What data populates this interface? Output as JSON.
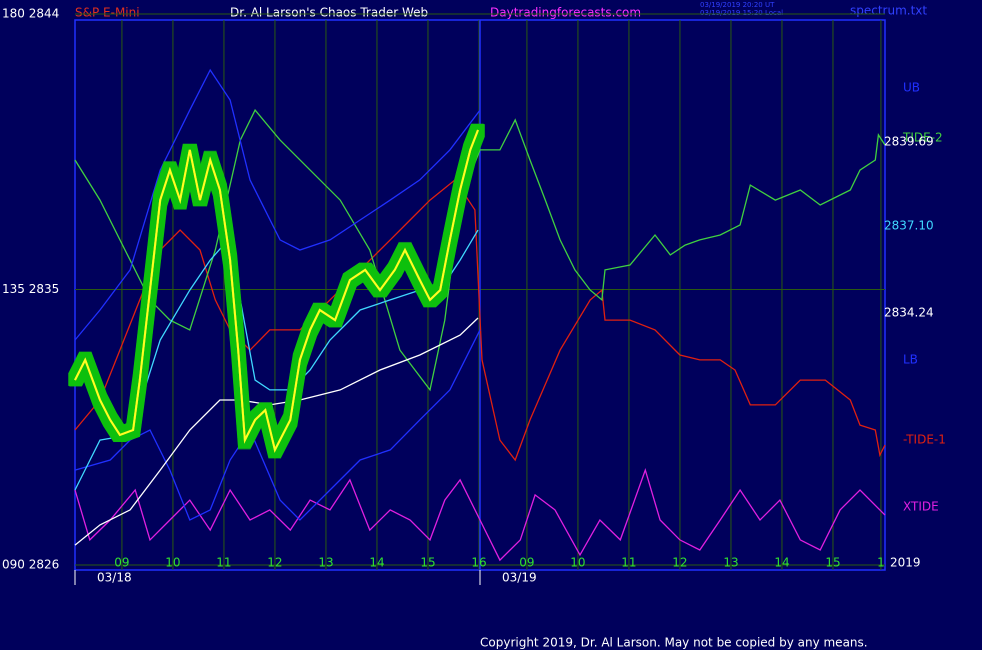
{
  "chart_data": {
    "type": "line",
    "title": "Dr. Al Larson's Chaos Trader Web",
    "instrument": "S&P E-Mini",
    "site": "Daytradingforecasts.com",
    "timestamps": [
      "03/19/2019 20:20 UT",
      "03/19/2019 15:20 Local"
    ],
    "file": "spectrum.txt",
    "footer": "Copyright 2019, Dr. Al Larson. May not be copied by any means.",
    "year": "2019",
    "grid": true,
    "ylim": [
      2826,
      2844
    ],
    "yticks": [
      {
        "value": 2826,
        "label": "090  2826"
      },
      {
        "value": 2835,
        "label": "135  2835"
      },
      {
        "value": 2844,
        "label": "180  2844"
      }
    ],
    "xlim": [
      0,
      15.88
    ],
    "xticks": [
      {
        "value": 0.92,
        "label": "09"
      },
      {
        "value": 1.92,
        "label": "10"
      },
      {
        "value": 2.92,
        "label": "11"
      },
      {
        "value": 3.92,
        "label": "12"
      },
      {
        "value": 4.92,
        "label": "13"
      },
      {
        "value": 5.92,
        "label": "14"
      },
      {
        "value": 6.92,
        "label": "15"
      },
      {
        "value": 7.92,
        "label": "16"
      },
      {
        "value": 8.86,
        "label": "09"
      },
      {
        "value": 9.86,
        "label": "10"
      },
      {
        "value": 10.86,
        "label": "11"
      },
      {
        "value": 11.86,
        "label": "12"
      },
      {
        "value": 12.86,
        "label": "13"
      },
      {
        "value": 13.86,
        "label": "14"
      },
      {
        "value": 14.86,
        "label": "15"
      },
      {
        "value": 15.8,
        "label": "1"
      }
    ],
    "date_ticks": [
      {
        "value": 0,
        "label": "03/18"
      },
      {
        "value": 7.94,
        "label": "03/19"
      }
    ],
    "price_labels": [
      {
        "text": "2839.69",
        "color": "#ffffff"
      },
      {
        "text": "2837.10",
        "color": "#40d8ff"
      },
      {
        "text": "2834.24",
        "color": "#ffffff"
      }
    ],
    "series": [
      {
        "name": "XTIDE",
        "color": "#e020e0",
        "x": [
          0,
          0.29,
          0.69,
          1.18,
          1.47,
          1.86,
          2.25,
          2.65,
          3.04,
          3.43,
          3.82,
          4.22,
          4.61,
          5,
          5.39,
          5.78,
          6.18,
          6.57,
          6.96,
          7.25,
          7.55,
          7.94,
          8.33,
          8.73,
          9.02,
          9.41,
          9.9,
          10.29,
          10.69,
          11.18,
          11.47,
          11.86,
          12.25,
          12.65,
          13.04,
          13.43,
          13.82,
          14.22,
          14.61,
          15,
          15.39,
          15.88
        ],
        "values": [
          2828.45,
          2826.82,
          2827.47,
          2828.45,
          2826.82,
          2827.47,
          2828.12,
          2827.14,
          2828.45,
          2827.47,
          2827.8,
          2827.14,
          2828.12,
          2827.8,
          2828.78,
          2827.14,
          2827.8,
          2827.47,
          2826.82,
          2828.12,
          2828.78,
          2827.47,
          2826.16,
          2826.82,
          2828.29,
          2827.8,
          2826.33,
          2827.47,
          2826.82,
          2829.1,
          2827.47,
          2826.82,
          2826.49,
          2827.47,
          2828.45,
          2827.47,
          2828.12,
          2826.82,
          2826.49,
          2827.8,
          2828.45,
          2827.63
        ]
      },
      {
        "name": "-TIDE-1",
        "color": "#e02010",
        "x": [
          0,
          0.49,
          0.88,
          1.27,
          1.67,
          2.06,
          2.45,
          2.75,
          3.04,
          3.43,
          3.82,
          4.41,
          5,
          5.59,
          6.18,
          6.57,
          6.96,
          7.45,
          7.84,
          7.98,
          8.33,
          8.63,
          8.92,
          9.51,
          10.1,
          10.33,
          10.39,
          10.88,
          11.37,
          11.86,
          12.25,
          12.65,
          12.94,
          13.24,
          13.73,
          14.22,
          14.71,
          15.2,
          15.39,
          15.69,
          15.78,
          15.88
        ],
        "values": [
          2830.41,
          2831.39,
          2833.02,
          2834.66,
          2836.29,
          2836.94,
          2836.29,
          2834.66,
          2833.68,
          2833.02,
          2833.68,
          2833.68,
          2834.66,
          2835.64,
          2836.62,
          2837.27,
          2837.92,
          2838.58,
          2837.6,
          2832.7,
          2830.08,
          2829.43,
          2830.74,
          2833.02,
          2834.66,
          2834.98,
          2834.0,
          2834.0,
          2833.68,
          2832.86,
          2832.7,
          2832.7,
          2832.37,
          2831.23,
          2831.23,
          2832.04,
          2832.04,
          2831.39,
          2830.57,
          2830.41,
          2829.59,
          2829.92
        ]
      },
      {
        "name": "TIDE-2",
        "color": "#40d040",
        "x": [
          0,
          0.49,
          1.08,
          1.47,
          1.86,
          2.25,
          2.75,
          3.24,
          3.53,
          4.02,
          4.61,
          5.2,
          5.78,
          6.37,
          6.96,
          7.25,
          7.55,
          7.94,
          8.33,
          8.63,
          8.92,
          9.22,
          9.51,
          9.8,
          10.1,
          10.33,
          10.39,
          10.88,
          11.37,
          11.67,
          11.96,
          12.25,
          12.65,
          13.04,
          13.24,
          13.73,
          14.22,
          14.61,
          15.2,
          15.39,
          15.69,
          15.75,
          15.88
        ],
        "values": [
          2839.23,
          2837.92,
          2835.96,
          2834.66,
          2834.0,
          2833.68,
          2836.29,
          2839.88,
          2840.86,
          2839.88,
          2838.9,
          2837.92,
          2836.29,
          2833.02,
          2831.72,
          2834.0,
          2837.92,
          2839.56,
          2839.56,
          2840.54,
          2839.23,
          2837.92,
          2836.62,
          2835.64,
          2834.98,
          2834.66,
          2835.64,
          2835.8,
          2836.78,
          2836.13,
          2836.45,
          2836.62,
          2836.78,
          2837.11,
          2838.41,
          2837.92,
          2838.25,
          2837.76,
          2838.25,
          2838.9,
          2839.23,
          2840.05,
          2839.72
        ]
      },
      {
        "name": "UB",
        "color": "#2030ff",
        "x": [
          0,
          0.49,
          1.08,
          1.67,
          2.25,
          2.65,
          3.04,
          3.43,
          4.02,
          4.41,
          5,
          5.59,
          6.18,
          6.76,
          7.35,
          7.94
        ],
        "values": [
          2833.35,
          2834.33,
          2835.64,
          2838.9,
          2840.86,
          2842.17,
          2841.19,
          2838.58,
          2836.62,
          2836.29,
          2836.62,
          2837.27,
          2837.92,
          2838.58,
          2839.56,
          2840.86
        ]
      },
      {
        "name": "LB",
        "color": "#2030ff",
        "x": [
          0,
          0.69,
          1.08,
          1.47,
          1.86,
          2.25,
          2.65,
          3.04,
          3.43,
          4.02,
          4.41,
          5,
          5.59,
          6.18,
          6.76,
          7.35,
          7.94
        ],
        "values": [
          2829.1,
          2829.43,
          2830.08,
          2830.41,
          2829.1,
          2827.47,
          2827.8,
          2829.43,
          2830.41,
          2828.12,
          2827.47,
          2828.45,
          2829.43,
          2829.76,
          2830.74,
          2831.72,
          2833.68
        ]
      },
      {
        "color": "#ffffff",
        "x": [
          0,
          0.49,
          1.08,
          1.67,
          2.25,
          2.84,
          3.24,
          3.82,
          4.41,
          5.2,
          5.98,
          6.76,
          7.55,
          7.9
        ],
        "values": [
          2826.65,
          2827.31,
          2827.8,
          2829.1,
          2830.41,
          2831.39,
          2831.39,
          2831.23,
          2831.39,
          2831.72,
          2832.37,
          2832.86,
          2833.51,
          2834.07
        ]
      },
      {
        "color": "#40d8ff",
        "x": [
          0,
          0.49,
          1.08,
          1.67,
          2.25,
          2.65,
          3,
          3.24,
          3.53,
          3.82,
          4.22,
          4.61,
          5,
          5.59,
          6.18,
          6.76,
          7.16,
          7.55,
          7.9
        ],
        "values": [
          2828.45,
          2830.08,
          2830.25,
          2833.35,
          2834.98,
          2835.96,
          2836.62,
          2834.66,
          2832.04,
          2831.72,
          2831.72,
          2832.37,
          2833.35,
          2834.33,
          2834.66,
          2834.98,
          2834.98,
          2835.96,
          2836.94
        ]
      },
      {
        "color": "#ffff20",
        "x": [
          0,
          0.2,
          0.49,
          0.69,
          0.88,
          1.14,
          1.27,
          1.47,
          1.67,
          1.86,
          2.06,
          2.25,
          2.45,
          2.65,
          2.84,
          3.04,
          3.2,
          3.33,
          3.53,
          3.73,
          3.92,
          4.22,
          4.41,
          4.61,
          4.8,
          5.1,
          5.39,
          5.69,
          5.98,
          6.27,
          6.47,
          6.76,
          6.96,
          7.16,
          7.35,
          7.55,
          7.75,
          7.9
        ],
        "values": [
          2832.04,
          2832.7,
          2831.39,
          2830.74,
          2830.25,
          2830.41,
          2832.04,
          2834.98,
          2837.92,
          2838.9,
          2837.92,
          2839.56,
          2837.92,
          2839.23,
          2838.25,
          2835.96,
          2833.02,
          2830.08,
          2830.74,
          2831.06,
          2829.76,
          2830.74,
          2832.7,
          2833.68,
          2834.33,
          2834.0,
          2835.31,
          2835.64,
          2834.98,
          2835.64,
          2836.29,
          2835.31,
          2834.66,
          2834.98,
          2836.62,
          2838.25,
          2839.56,
          2840.21
        ]
      }
    ]
  }
}
